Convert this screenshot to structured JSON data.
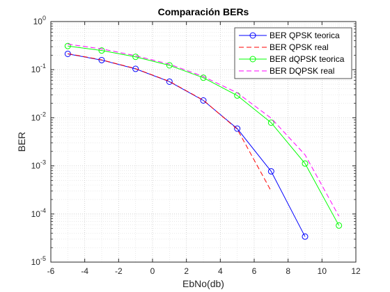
{
  "chart_data": {
    "type": "line",
    "title": "Comparación BERs",
    "xlabel": "EbNo(db)",
    "ylabel": "BER",
    "xlim": [
      -6,
      12
    ],
    "ylim": [
      1e-05,
      1
    ],
    "yscale": "log",
    "grid": "on (major and minor, dotted)",
    "legend_position": "top-right",
    "x_ticks": [
      "-6",
      "-4",
      "-2",
      "0",
      "2",
      "4",
      "6",
      "8",
      "10",
      "12"
    ],
    "y_ticks": [
      {
        "base": "10",
        "exp": "0"
      },
      {
        "base": "10",
        "exp": "-1"
      },
      {
        "base": "10",
        "exp": "-2"
      },
      {
        "base": "10",
        "exp": "-3"
      },
      {
        "base": "10",
        "exp": "-4"
      },
      {
        "base": "10",
        "exp": "-5"
      }
    ],
    "series": [
      {
        "name": "BER QPSK teorica",
        "color": "#0000ff",
        "style": "solid",
        "marker": "circle",
        "x": [
          -5,
          -3,
          -1,
          1,
          3,
          5,
          7,
          9
        ],
        "y": [
          0.213,
          0.158,
          0.104,
          0.0563,
          0.0229,
          0.00595,
          0.00077,
          3.39e-05
        ]
      },
      {
        "name": "BER QPSK real",
        "color": "#ff0000",
        "style": "dashed",
        "marker": "none",
        "x": [
          -5,
          -3,
          -1,
          1,
          3,
          5,
          7
        ],
        "y": [
          0.215,
          0.16,
          0.105,
          0.057,
          0.0232,
          0.0058,
          0.0003
        ]
      },
      {
        "name": "BER dQPSK teorica",
        "color": "#00ff00",
        "style": "solid",
        "marker": "circle",
        "x": [
          -5,
          -3,
          -1,
          1,
          3,
          5,
          7,
          9,
          11
        ],
        "y": [
          0.31,
          0.25,
          0.185,
          0.123,
          0.068,
          0.029,
          0.0079,
          0.00112,
          5.75e-05
        ]
      },
      {
        "name": "BER DQPSK real",
        "color": "#ff00ff",
        "style": "dashed",
        "marker": "none",
        "x": [
          -5,
          -3,
          -1,
          1,
          3,
          5,
          7,
          9,
          11
        ],
        "y": [
          0.34,
          0.27,
          0.195,
          0.13,
          0.072,
          0.033,
          0.0098,
          0.0017,
          9e-05
        ]
      }
    ]
  }
}
